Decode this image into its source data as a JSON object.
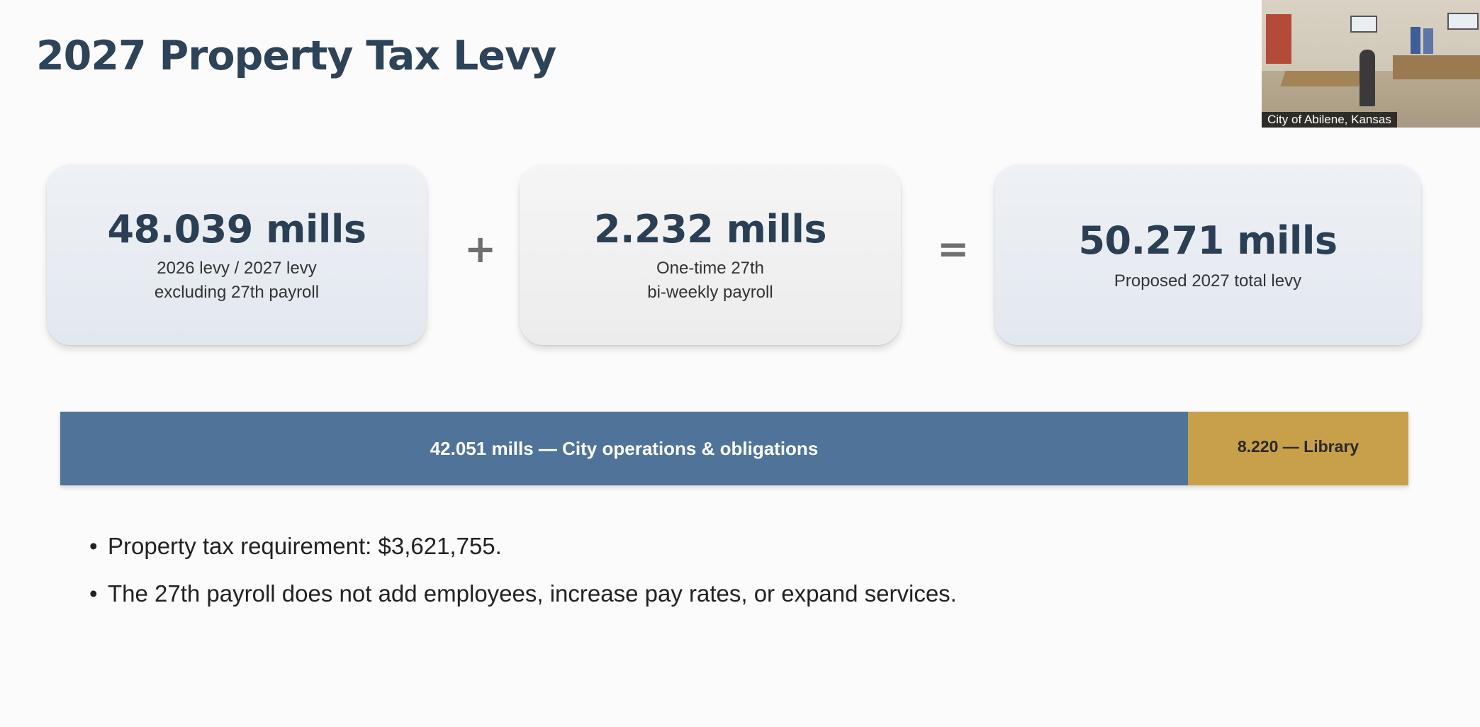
{
  "slide": {
    "title": "2027 Property Tax Levy"
  },
  "camera_inset": {
    "caption": "City of Abilene,  Kansas"
  },
  "cards": [
    {
      "value": "48.039 mills",
      "desc_line1": "2026 levy / 2027 levy",
      "desc_line2": "excluding 27th payroll"
    },
    {
      "value": "2.232 mills",
      "desc_line1": "One-time 27th",
      "desc_line2": "bi-weekly payroll"
    },
    {
      "value": "50.271 mills",
      "desc_line1": "Proposed 2027 total levy"
    }
  ],
  "operators": {
    "plus": "+",
    "equal": "="
  },
  "levy_bar": {
    "total_mills": 50.271,
    "segments": [
      {
        "label": "42.051 mills — City operations & obligations",
        "mills": 42.051,
        "color": "#4f7399"
      },
      {
        "label": "8.220 — Library",
        "mills": 8.22,
        "color": "#c8a04a"
      }
    ]
  },
  "bullets": {
    "marker": "•",
    "items": [
      "Property tax requirement: $3,621,755.",
      "The 27th payroll does not add employees, increase pay rates, or expand services."
    ]
  }
}
